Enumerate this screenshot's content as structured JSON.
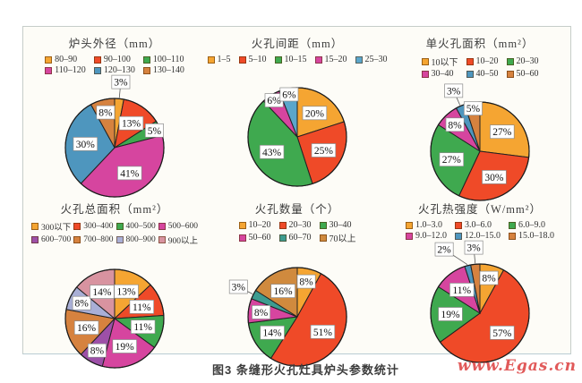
{
  "figure": {
    "caption": "图3 条缝形火孔灶具炉头参数统计",
    "watermark": "www.Egas.cn"
  },
  "chart_data": [
    {
      "type": "pie",
      "title": "炉头外径（mm）",
      "legend_cols": 3,
      "slices": [
        {
          "label": "80–90",
          "value": 3,
          "color": "#F5A532"
        },
        {
          "label": "90–100",
          "value": 13,
          "color": "#EF4A28"
        },
        {
          "label": "100–110",
          "value": 5,
          "color": "#3FA94F"
        },
        {
          "label": "110–120",
          "value": 41,
          "color": "#D6459F"
        },
        {
          "label": "120–130",
          "value": 30,
          "color": "#4E96BE"
        },
        {
          "label": "130–140",
          "value": 8,
          "color": "#D6823F"
        }
      ]
    },
    {
      "type": "pie",
      "title": "火孔间距（mm）",
      "legend_cols": 5,
      "slices": [
        {
          "label": "1–5",
          "value": 20,
          "color": "#F5A532"
        },
        {
          "label": "5–10",
          "value": 25,
          "color": "#EF4A28"
        },
        {
          "label": "10–15",
          "value": 43,
          "color": "#3FA94F"
        },
        {
          "label": "15–20",
          "value": 6,
          "color": "#D6459F"
        },
        {
          "label": "25–30",
          "value": 6,
          "color": "#5BA6CB"
        }
      ]
    },
    {
      "type": "pie",
      "title": "单火孔面积（mm²）",
      "legend_cols": 3,
      "slices": [
        {
          "label": "10以下",
          "value": 27,
          "color": "#F5A532"
        },
        {
          "label": "10–20",
          "value": 30,
          "color": "#EF4A28"
        },
        {
          "label": "20–30",
          "value": 27,
          "color": "#3FA94F"
        },
        {
          "label": "30–40",
          "value": 8,
          "color": "#D6459F"
        },
        {
          "label": "40–50",
          "value": 3,
          "color": "#4E96BE"
        },
        {
          "label": "50–60",
          "value": 5,
          "color": "#D6823F"
        }
      ]
    },
    {
      "type": "pie",
      "title": "火孔总面积（mm²）",
      "legend_cols": 4,
      "slices": [
        {
          "label": "300以下",
          "value": 13,
          "color": "#F5A532"
        },
        {
          "label": "300–400",
          "value": 11,
          "color": "#EF4A28"
        },
        {
          "label": "400–500",
          "value": 11,
          "color": "#3FA94F"
        },
        {
          "label": "500–600",
          "value": 19,
          "color": "#D6459F"
        },
        {
          "label": "600–700",
          "value": 8,
          "color": "#9D50A8"
        },
        {
          "label": "700–800",
          "value": 16,
          "color": "#D6823F"
        },
        {
          "label": "800–900",
          "value": 8,
          "color": "#A9AFD6"
        },
        {
          "label": "900以上",
          "value": 14,
          "color": "#D893A0"
        }
      ]
    },
    {
      "type": "pie",
      "title": "火孔数量（个）",
      "legend_cols": 3,
      "slices": [
        {
          "label": "10–20",
          "value": 8,
          "color": "#F5A532"
        },
        {
          "label": "20–30",
          "value": 51,
          "color": "#EF4A28"
        },
        {
          "label": "30–40",
          "value": 14,
          "color": "#3FA94F"
        },
        {
          "label": "50–60",
          "value": 8,
          "color": "#D6459F"
        },
        {
          "label": "60–70",
          "value": 3,
          "color": "#3D9C90"
        },
        {
          "label": "70以上",
          "value": 16,
          "color": "#D08A3E"
        }
      ]
    },
    {
      "type": "pie",
      "title": "火孔热强度（W/mm²）",
      "legend_cols": 3,
      "slices": [
        {
          "label": "1.0–3.0",
          "value": 8,
          "color": "#F5A532"
        },
        {
          "label": "3.0–6.0",
          "value": 57,
          "color": "#EF4A28"
        },
        {
          "label": "6.0–9.0",
          "value": 19,
          "color": "#3FA94F"
        },
        {
          "label": "9.0–12.0",
          "value": 11,
          "color": "#D6459F"
        },
        {
          "label": "12.0–15.0",
          "value": 2,
          "color": "#4E96BE"
        },
        {
          "label": "15.0–18.0",
          "value": 3,
          "color": "#D6823F"
        }
      ]
    }
  ]
}
